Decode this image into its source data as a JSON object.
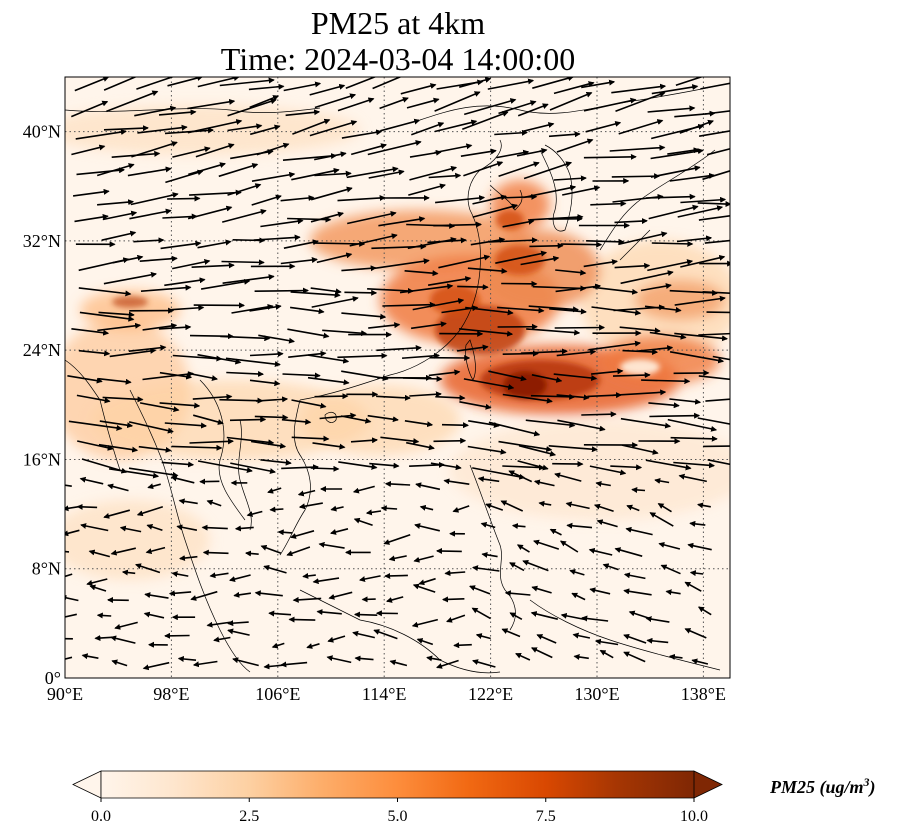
{
  "title": {
    "line1": "PM25 at 4km",
    "line2": "Time: 2024-03-04 14:00:00"
  },
  "map": {
    "extent": {
      "lon": [
        90,
        140
      ],
      "lat": [
        0,
        44
      ]
    },
    "lon_ticks": [
      {
        "value": 90,
        "label": "90°E"
      },
      {
        "value": 98,
        "label": "98°E"
      },
      {
        "value": 106,
        "label": "106°E"
      },
      {
        "value": 114,
        "label": "114°E"
      },
      {
        "value": 122,
        "label": "122°E"
      },
      {
        "value": 130,
        "label": "130°E"
      },
      {
        "value": 138,
        "label": "138°E"
      }
    ],
    "lat_ticks": [
      {
        "value": 0,
        "label": "0°"
      },
      {
        "value": 8,
        "label": "8°N"
      },
      {
        "value": 16,
        "label": "16°N"
      },
      {
        "value": 24,
        "label": "24°N"
      },
      {
        "value": 32,
        "label": "32°N"
      },
      {
        "value": 40,
        "label": "40°N"
      }
    ],
    "gridlines": "dotted",
    "background_color": "#fff5eb",
    "colormap": [
      "#fff5eb",
      "#fee6ce",
      "#fdd0a2",
      "#fdae6b",
      "#fd8d3c",
      "#f16913",
      "#d94801",
      "#a63603",
      "#7f2704"
    ]
  },
  "colorbar": {
    "min": 0,
    "max": 10,
    "ticks": [
      {
        "value": 0,
        "label": "0.0"
      },
      {
        "value": 2.5,
        "label": "2.5"
      },
      {
        "value": 5,
        "label": "5.0"
      },
      {
        "value": 7.5,
        "label": "7.5"
      },
      {
        "value": 10,
        "label": "10.0"
      }
    ],
    "title": "PM25 (ug/m",
    "title_superscript": "3",
    "title_close": ")",
    "extend": "both"
  }
}
